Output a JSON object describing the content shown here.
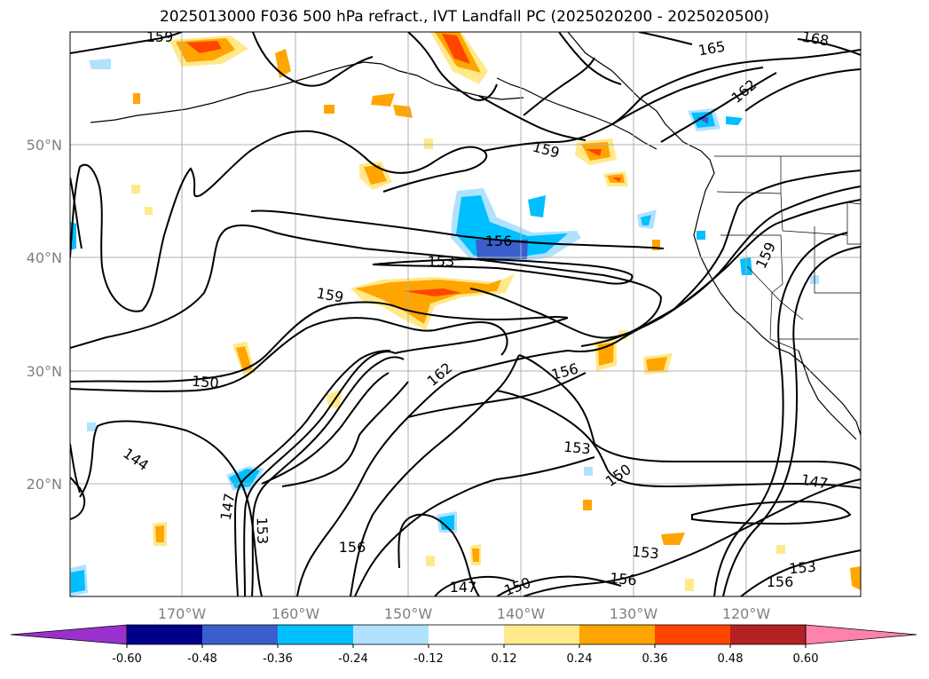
{
  "title": "2025013000 F036 500 hPa refract., IVT Landfall PC (2025020200 - 2025020500)",
  "latitude_labels": [
    "50°N",
    "40°N",
    "30°N",
    "20°N"
  ],
  "longitude_labels": [
    "170°W",
    "160°W",
    "150°W",
    "140°W",
    "130°W",
    "120°W"
  ],
  "contour_labels": [
    "159",
    "165",
    "168",
    "162",
    "159",
    "156",
    "153",
    "159",
    "162",
    "156",
    "150",
    "153",
    "150",
    "144",
    "147",
    "153",
    "156",
    "147",
    "150",
    "156",
    "153",
    "147",
    "153",
    "156",
    "159"
  ],
  "colorbar": {
    "ticks": [
      "-0.60",
      "-0.48",
      "-0.36",
      "-0.24",
      "-0.12",
      "0.12",
      "0.24",
      "0.36",
      "0.48",
      "0.60"
    ],
    "colors": [
      "#9932cc",
      "#00008b",
      "#3a5fcd",
      "#00bfff",
      "#b0e2ff",
      "#ffffff",
      "#ffe98a",
      "#ffa500",
      "#ff4500",
      "#b22222",
      "#ff82ab"
    ]
  }
}
